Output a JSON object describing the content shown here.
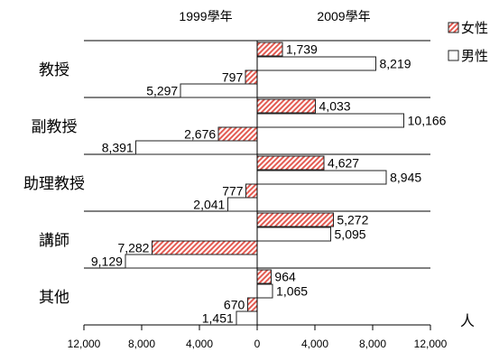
{
  "chart_data": {
    "type": "bar",
    "orientation": "horizontal",
    "categories": [
      "教授",
      "副教授",
      "助理教授",
      "講師",
      "其他"
    ],
    "groups": [
      {
        "name": "1999學年",
        "series": [
          {
            "name": "女性",
            "values": [
              797,
              2676,
              777,
              7282,
              670
            ],
            "labels": [
              "797",
              "2,676",
              "777",
              "7,282",
              "670"
            ]
          },
          {
            "name": "男性",
            "values": [
              5297,
              8391,
              2041,
              9129,
              1451
            ],
            "labels": [
              "5,297",
              "8,391",
              "2,041",
              "9,129",
              "1,451"
            ]
          }
        ]
      },
      {
        "name": "2009學年",
        "series": [
          {
            "name": "女性",
            "values": [
              1739,
              4033,
              4627,
              5272,
              964
            ],
            "labels": [
              "1,739",
              "4,033",
              "4,627",
              "5,272",
              "964"
            ]
          },
          {
            "name": "男性",
            "values": [
              8219,
              10166,
              8945,
              5095,
              1065
            ],
            "labels": [
              "8,219",
              "10,166",
              "8,945",
              "5,095",
              "1,065"
            ]
          }
        ]
      }
    ],
    "xlim": [
      -12000,
      12000
    ],
    "x_ticks": [
      -12000,
      -8000,
      -4000,
      0,
      4000,
      8000,
      12000
    ],
    "x_tick_labels": [
      "12,000",
      "8,000",
      "4,000",
      "0",
      "4,000",
      "8,000",
      "12,000"
    ],
    "x_unit": "人",
    "grid": false,
    "legend": {
      "position": "top-right",
      "items": [
        {
          "name": "女性",
          "color": "#e35b52"
        },
        {
          "name": "男性",
          "color": "#ffffff"
        }
      ]
    },
    "colors": {
      "female": "#e35b52",
      "male": "#ffffff",
      "outline": "#222222"
    }
  }
}
